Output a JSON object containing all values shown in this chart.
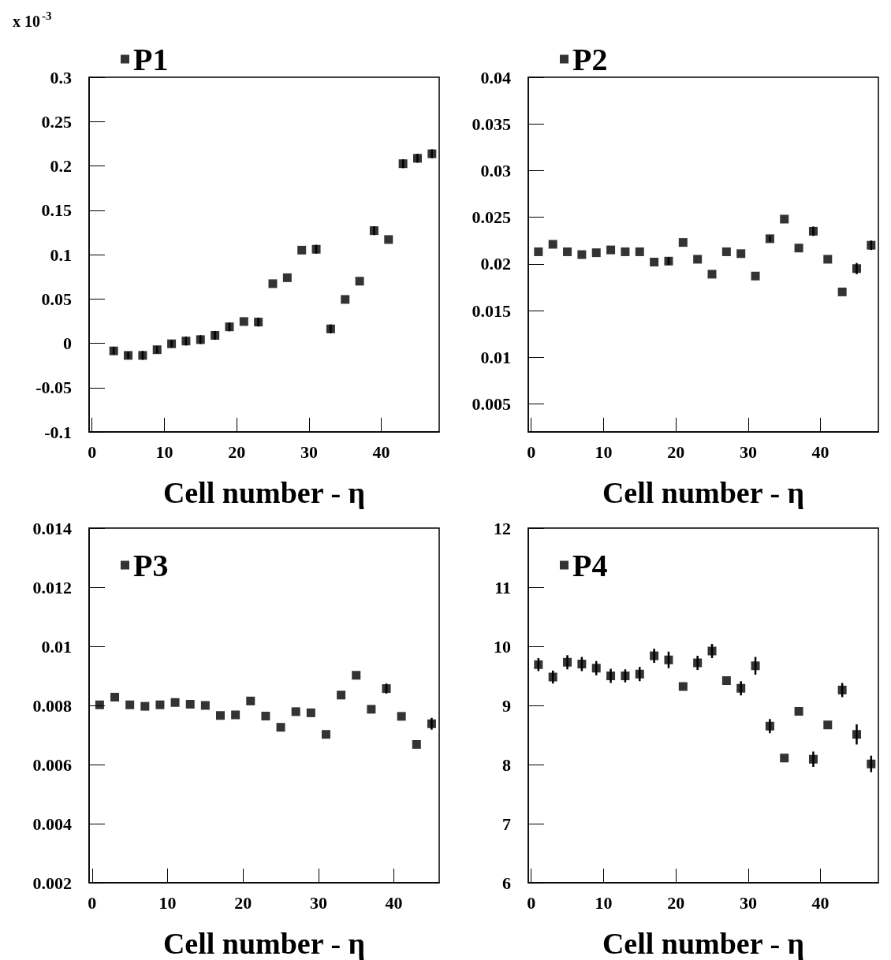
{
  "chart_data": [
    {
      "type": "scatter",
      "xlabel": "Cell number - η",
      "annotations": [
        "x 10$^{-3}$"
      ],
      "legend": "top left",
      "marker": "square",
      "x": [
        3,
        5,
        7,
        9,
        11,
        13,
        15,
        17,
        19,
        21,
        23,
        25,
        27,
        29,
        31,
        33,
        35,
        37,
        39,
        41,
        43,
        45,
        47
      ],
      "xlim": [
        -0.4,
        48
      ],
      "xticks": [
        0,
        10,
        20,
        30,
        40
      ],
      "ylim": [
        -0.1,
        0.3
      ],
      "yticks": [
        -0.1,
        -0.05,
        0,
        0.05,
        0.1,
        0.15,
        0.2,
        0.25,
        0.3
      ],
      "series": [
        {
          "name": "P1",
          "color": "#000000",
          "values": [
            -0.0086,
            -0.0137,
            -0.0137,
            -0.0073,
            -0.0006,
            0.0025,
            0.0041,
            0.0089,
            0.0185,
            0.0245,
            0.0239,
            0.0672,
            0.0739,
            0.105,
            0.106,
            0.0162,
            0.0494,
            0.07,
            0.127,
            0.117,
            0.2025,
            0.2086,
            0.2137
          ],
          "errors": [
            0.004,
            0.004,
            0.005,
            0.004,
            0.004,
            0.005,
            0.005,
            0.005,
            0.005,
            null,
            0.005,
            null,
            null,
            null,
            0.005,
            0.005,
            null,
            null,
            0.005,
            null,
            0.005,
            0.005,
            0.005
          ]
        }
      ]
    },
    {
      "type": "scatter",
      "xlabel": "Cell number - η",
      "legend": "top left",
      "marker": "square",
      "x": [
        1,
        3,
        5,
        7,
        9,
        11,
        13,
        15,
        17,
        19,
        21,
        23,
        25,
        27,
        29,
        31,
        33,
        35,
        37,
        39,
        41,
        43,
        45,
        47
      ],
      "xlim": [
        -0.4,
        48
      ],
      "xticks": [
        0,
        10,
        20,
        30,
        40
      ],
      "ylim": [
        0.002,
        0.04
      ],
      "yticks": [
        0.005,
        0.01,
        0.015,
        0.02,
        0.025,
        0.03,
        0.035,
        0.04
      ],
      "series": [
        {
          "name": "P2",
          "color": "#000000",
          "values": [
            0.0213,
            0.0221,
            0.0213,
            0.021,
            0.0212,
            0.0215,
            0.0213,
            0.0213,
            0.0202,
            0.0203,
            0.0223,
            0.0205,
            0.0189,
            0.0213,
            0.0211,
            0.0187,
            0.0227,
            0.0248,
            0.0217,
            0.0235,
            0.0205,
            0.017,
            0.0195,
            0.022
          ],
          "errors": [
            null,
            null,
            null,
            null,
            null,
            null,
            null,
            null,
            null,
            0.0004,
            null,
            null,
            null,
            null,
            null,
            null,
            0.0003,
            null,
            null,
            0.0005,
            null,
            null,
            0.0006,
            0.0005
          ]
        }
      ]
    },
    {
      "type": "scatter",
      "xlabel": "Cell number - η",
      "legend": "top left",
      "marker": "square",
      "x": [
        1,
        3,
        5,
        7,
        9,
        11,
        13,
        15,
        17,
        19,
        21,
        23,
        25,
        27,
        29,
        31,
        33,
        35,
        37,
        39,
        41,
        43,
        45
      ],
      "xlim": [
        -0.4,
        46
      ],
      "xticks": [
        0,
        10,
        20,
        30,
        40
      ],
      "ylim": [
        0.002,
        0.014
      ],
      "yticks": [
        0.002,
        0.004,
        0.006,
        0.008,
        0.01,
        0.012,
        0.014
      ],
      "series": [
        {
          "name": "P3",
          "color": "#000000",
          "values": [
            0.00802,
            0.00828,
            0.00802,
            0.00797,
            0.00802,
            0.0081,
            0.00804,
            0.008,
            0.00766,
            0.00768,
            0.00815,
            0.00764,
            0.00726,
            0.00779,
            0.00775,
            0.00702,
            0.00835,
            0.00902,
            0.00787,
            0.00857,
            0.00763,
            0.00668,
            0.00738
          ],
          "errors": [
            null,
            null,
            null,
            null,
            null,
            null,
            null,
            null,
            null,
            null,
            null,
            null,
            null,
            null,
            null,
            null,
            null,
            null,
            null,
            0.00017,
            null,
            null,
            0.0002
          ]
        }
      ]
    },
    {
      "type": "scatter",
      "xlabel": "Cell number - η",
      "legend": "top left",
      "marker": "square",
      "x": [
        1,
        3,
        5,
        7,
        9,
        11,
        13,
        15,
        17,
        19,
        21,
        23,
        25,
        27,
        29,
        31,
        33,
        35,
        37,
        39,
        41,
        43,
        45,
        47
      ],
      "xlim": [
        -0.4,
        48
      ],
      "xticks": [
        0,
        10,
        20,
        30,
        40
      ],
      "ylim": [
        6,
        12
      ],
      "yticks": [
        6,
        7,
        8,
        9,
        10,
        11,
        12
      ],
      "series": [
        {
          "name": "P4",
          "color": "#000000",
          "values": [
            9.69,
            9.48,
            9.73,
            9.7,
            9.63,
            9.5,
            9.5,
            9.53,
            9.84,
            9.77,
            9.32,
            9.72,
            9.92,
            9.42,
            9.29,
            9.67,
            8.65,
            8.11,
            8.9,
            8.09,
            8.67,
            9.26,
            8.51,
            8.01
          ],
          "errors": [
            0.11,
            0.11,
            0.12,
            0.12,
            0.12,
            0.12,
            0.11,
            0.12,
            0.12,
            0.14,
            null,
            0.12,
            0.12,
            null,
            0.12,
            0.15,
            0.12,
            null,
            null,
            0.13,
            null,
            0.12,
            0.17,
            0.14
          ]
        }
      ]
    }
  ]
}
